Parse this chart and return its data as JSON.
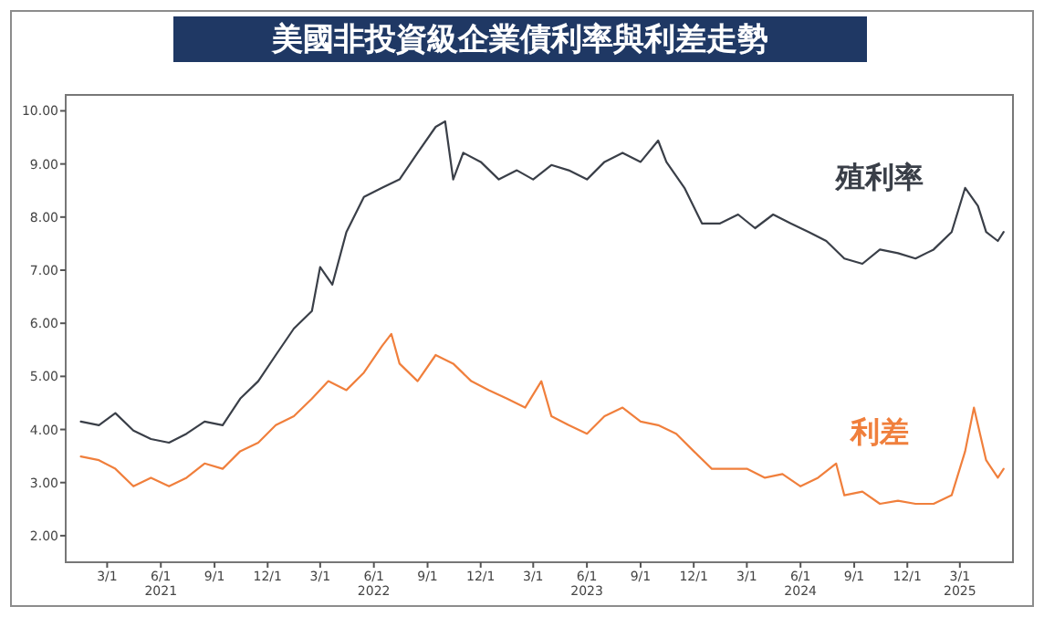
{
  "chart_data": {
    "type": "line",
    "title": "美國非投資級企業債利率與利差走勢",
    "x": [
      "2021-01-15",
      "2021-02-15",
      "2021-03-15",
      "2021-04-15",
      "2021-05-15",
      "2021-06-15",
      "2021-07-15",
      "2021-08-15",
      "2021-09-15",
      "2021-10-15",
      "2021-11-15",
      "2021-12-15",
      "2022-01-15",
      "2022-02-15",
      "2022-03-01",
      "2022-03-22",
      "2022-04-15",
      "2022-05-15",
      "2022-06-15",
      "2022-07-15",
      "2022-08-15",
      "2022-09-15",
      "2022-10-01",
      "2022-10-15",
      "2022-11-01",
      "2022-12-01",
      "2023-01-01",
      "2023-02-01",
      "2023-03-01",
      "2023-04-01",
      "2023-05-01",
      "2023-06-01",
      "2023-07-01",
      "2023-08-01",
      "2023-09-01",
      "2023-10-01",
      "2023-10-15",
      "2023-11-15",
      "2023-12-15",
      "2024-01-15",
      "2024-02-15",
      "2024-03-15",
      "2024-04-15",
      "2024-05-15",
      "2024-06-15",
      "2024-07-15",
      "2024-08-15",
      "2024-09-15",
      "2024-10-15",
      "2024-11-15",
      "2024-12-15",
      "2025-01-15",
      "2025-02-15",
      "2025-03-10",
      "2025-04-01",
      "2025-04-15",
      "2025-05-05",
      "2025-05-15"
    ],
    "series": [
      {
        "name": "殖利率",
        "color": "#3a3f48",
        "values": [
          4.15,
          4.08,
          4.31,
          3.98,
          3.82,
          3.75,
          3.92,
          4.15,
          4.08,
          4.58,
          4.91,
          5.4,
          5.9,
          6.23,
          7.06,
          6.73,
          7.72,
          8.38,
          8.55,
          8.71,
          9.21,
          9.7,
          9.8,
          8.71,
          9.21,
          9.04,
          8.71,
          8.88,
          8.71,
          8.98,
          8.88,
          8.71,
          9.04,
          9.21,
          9.04,
          9.44,
          9.04,
          8.55,
          7.88,
          7.88,
          8.05,
          7.79,
          8.05,
          7.88,
          7.72,
          7.55,
          7.22,
          7.12,
          7.39,
          7.32,
          7.22,
          7.39,
          7.72,
          8.55,
          8.21,
          7.72,
          7.55,
          7.72
        ]
      },
      {
        "name": "利差",
        "color": "#f07f3c",
        "x": [
          "2021-01-15",
          "2021-02-15",
          "2021-03-15",
          "2021-04-15",
          "2021-05-15",
          "2021-06-15",
          "2021-07-15",
          "2021-08-15",
          "2021-09-15",
          "2021-10-15",
          "2021-11-15",
          "2021-12-15",
          "2022-01-15",
          "2022-02-15",
          "2022-03-15",
          "2022-04-15",
          "2022-05-15",
          "2022-06-15",
          "2022-07-01",
          "2022-07-15",
          "2022-08-15",
          "2022-09-15",
          "2022-10-15",
          "2022-11-15",
          "2022-12-15",
          "2023-01-15",
          "2023-02-15",
          "2023-03-15",
          "2023-04-01",
          "2023-05-01",
          "2023-06-01",
          "2023-07-01",
          "2023-08-01",
          "2023-09-01",
          "2023-10-01",
          "2023-11-01",
          "2023-12-01",
          "2024-01-01",
          "2024-02-01",
          "2024-03-01",
          "2024-04-01",
          "2024-05-01",
          "2024-06-01",
          "2024-07-01",
          "2024-08-01",
          "2024-08-15",
          "2024-09-15",
          "2024-10-15",
          "2024-11-15",
          "2024-12-15",
          "2025-01-15",
          "2025-02-15",
          "2025-03-10",
          "2025-03-25",
          "2025-04-15",
          "2025-05-05",
          "2025-05-15"
        ],
        "values": [
          3.49,
          3.42,
          3.26,
          2.93,
          3.09,
          2.93,
          3.09,
          3.36,
          3.26,
          3.59,
          3.75,
          4.08,
          4.25,
          4.58,
          4.91,
          4.74,
          5.07,
          5.57,
          5.8,
          5.24,
          4.91,
          5.4,
          5.24,
          4.91,
          4.74,
          4.58,
          4.41,
          4.91,
          4.25,
          4.08,
          3.92,
          4.25,
          4.41,
          4.15,
          4.08,
          3.92,
          3.59,
          3.26,
          3.26,
          3.26,
          3.09,
          3.16,
          2.93,
          3.09,
          3.36,
          2.76,
          2.83,
          2.6,
          2.66,
          2.6,
          2.6,
          2.76,
          3.59,
          4.41,
          3.42,
          3.09,
          3.26
        ]
      }
    ],
    "xlim": [
      "2020-12-20",
      "2025-05-31"
    ],
    "xticks": [
      {
        "value": "2021-03-01",
        "label": "3/1"
      },
      {
        "value": "2021-06-01",
        "label": "6/1\n2021"
      },
      {
        "value": "2021-09-01",
        "label": "9/1"
      },
      {
        "value": "2021-12-01",
        "label": "12/1"
      },
      {
        "value": "2022-03-01",
        "label": "3/1"
      },
      {
        "value": "2022-06-01",
        "label": "6/1\n2022"
      },
      {
        "value": "2022-09-01",
        "label": "9/1"
      },
      {
        "value": "2022-12-01",
        "label": "12/1"
      },
      {
        "value": "2023-03-01",
        "label": "3/1"
      },
      {
        "value": "2023-06-01",
        "label": "6/1\n2023"
      },
      {
        "value": "2023-09-01",
        "label": "9/1"
      },
      {
        "value": "2023-12-01",
        "label": "12/1"
      },
      {
        "value": "2024-03-01",
        "label": "3/1"
      },
      {
        "value": "2024-06-01",
        "label": "6/1\n2024"
      },
      {
        "value": "2024-09-01",
        "label": "9/1"
      },
      {
        "value": "2024-12-01",
        "label": "12/1"
      },
      {
        "value": "2025-03-01",
        "label": "3/1\n2025"
      }
    ],
    "ylim": [
      1.5,
      10.3
    ],
    "yticks": [
      {
        "value": 2,
        "label": "2.00"
      },
      {
        "value": 3,
        "label": "3.00"
      },
      {
        "value": 4,
        "label": "4.00"
      },
      {
        "value": 5,
        "label": "5.00"
      },
      {
        "value": 6,
        "label": "6.00"
      },
      {
        "value": 7,
        "label": "7.00"
      },
      {
        "value": 8,
        "label": "8.00"
      },
      {
        "value": 9,
        "label": "9.00"
      },
      {
        "value": 10,
        "label": "10.00"
      }
    ],
    "grid": false,
    "legend": false,
    "marker": "none",
    "line_style": "solid"
  }
}
